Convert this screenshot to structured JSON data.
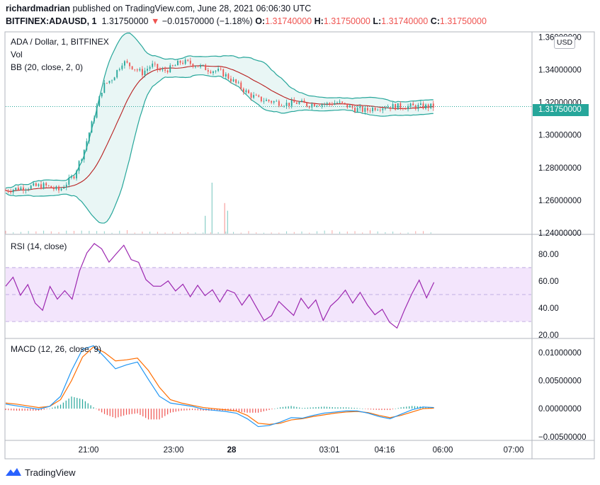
{
  "header": {
    "author": "richardmadrian",
    "published_text": " published on TradingView.com, June 28, 2021 06:06:30 UTC",
    "symbol": "BITFINEX:ADAUSD, 1",
    "last_price": "1.31750000",
    "change_arrow": "▼",
    "change": "−0.01570000 (−1.18%)",
    "o_label": "O:",
    "o_value": "1.31740000",
    "h_label": "H:",
    "h_value": "1.31750000",
    "l_label": "L:",
    "l_value": "1.31740000",
    "c_label": "C:",
    "c_value": "1.31750000"
  },
  "colors": {
    "up": "#26a69a",
    "down": "#ef5350",
    "bb_band": "#26a69a",
    "bb_basis": "#b71c1c",
    "bb_fill": "#e0f2f1",
    "rsi": "#9c27b0",
    "rsi_band_fill": "#f3e5fc",
    "macd": "#2196f3",
    "signal": "#ff6d00"
  },
  "footer": {
    "brand": "TradingView",
    "logo_icon": "tradingview-logo-icon"
  },
  "chart_data": [
    {
      "type": "candlestick",
      "pane": "price",
      "title": "ADA / Dollar, 1, BITFINEX",
      "indicators": [
        "Vol",
        "BB (20, close, 2, 0)"
      ],
      "currency_button": "USD",
      "last_price_label": "1.31750000",
      "y_ticks": [
        "1.36000000",
        "1.34000000",
        "1.32000000",
        "1.30000000",
        "1.28000000",
        "1.26000000",
        "1.24000000"
      ],
      "ylim": [
        1.2395,
        1.362
      ],
      "x_ticks": [
        "21:00",
        "23:00",
        "28",
        "03:01",
        "04:16",
        "06:00",
        "07:00"
      ],
      "time_range_min": [
        0,
        540
      ],
      "close": {
        "t": [
          0,
          20,
          40,
          55,
          70,
          80,
          90,
          100,
          110,
          120,
          130,
          140,
          150,
          160,
          170,
          180,
          190,
          200,
          210,
          220,
          230,
          240,
          250,
          260,
          270,
          280,
          290,
          300,
          310,
          320,
          330,
          340,
          350,
          360,
          370,
          380,
          390,
          400,
          410,
          420,
          430,
          440,
          450,
          460,
          470,
          480,
          490,
          500
        ],
        "v": [
          1.266,
          1.268,
          1.269,
          1.266,
          1.275,
          1.29,
          1.31,
          1.33,
          1.335,
          1.345,
          1.342,
          1.338,
          1.343,
          1.339,
          1.341,
          1.345,
          1.344,
          1.342,
          1.34,
          1.339,
          1.335,
          1.33,
          1.325,
          1.322,
          1.321,
          1.32,
          1.319,
          1.32,
          1.3185,
          1.3195,
          1.319,
          1.32,
          1.318,
          1.316,
          1.315,
          1.317,
          1.3175,
          1.3175,
          1.3175,
          1.3175,
          1.3175,
          1.3175,
          1.3175,
          1.3175,
          1.3175,
          1.3175,
          1.3175,
          1.3175
        ]
      },
      "volume_spikes": [
        {
          "t": 212,
          "v": 1.0,
          "dir": "up"
        },
        {
          "t": 225,
          "v": 0.6,
          "dir": "down"
        },
        {
          "t": 205,
          "v": 0.35,
          "dir": "up"
        },
        {
          "t": 228,
          "v": 0.45,
          "dir": "up"
        }
      ]
    },
    {
      "type": "line",
      "pane": "rsi",
      "title": "RSI (14, close)",
      "y_ticks": [
        "80.00",
        "60.00",
        "40.00",
        "20.00"
      ],
      "ylim": [
        18,
        92
      ],
      "band": [
        30,
        70
      ],
      "mid": 50,
      "values": [
        55,
        62,
        48,
        58,
        43,
        38,
        55,
        45,
        52,
        47,
        66,
        80,
        87,
        82,
        76,
        82,
        86,
        74,
        72,
        62,
        58,
        55,
        61,
        52,
        56,
        50,
        58,
        48,
        55,
        46,
        52,
        50,
        41,
        50,
        40,
        30,
        36,
        44,
        41,
        36,
        46,
        39,
        48,
        32,
        41,
        48,
        54,
        44,
        50,
        42,
        35,
        38,
        30,
        26,
        40,
        52,
        62,
        48,
        60
      ]
    },
    {
      "type": "line",
      "pane": "macd",
      "title": "MACD (12, 26, close, 9)",
      "y_ticks": [
        "0.01000000",
        "0.00500000",
        "0.00000000",
        "−0.00500000"
      ],
      "ylim": [
        -0.0054,
        0.012
      ],
      "series": [
        {
          "name": "MACD",
          "values": [
            0.0008,
            0.0005,
            0.0002,
            -0.0001,
            0.0004,
            0.0022,
            0.0068,
            0.0106,
            0.0112,
            0.0092,
            0.0071,
            0.0078,
            0.0083,
            0.0052,
            0.0022,
            0.001,
            0.0007,
            0.0004,
            -0.0001,
            -0.0003,
            -0.0005,
            -0.0008,
            -0.0018,
            -0.0032,
            -0.003,
            -0.0024,
            -0.0016,
            -0.0017,
            -0.0012,
            -0.0008,
            -0.0006,
            -0.0004,
            -0.0004,
            -0.0008,
            -0.0014,
            -0.0018,
            -0.001,
            -0.0002,
            0.0003,
            0.0002
          ]
        },
        {
          "name": "Signal",
          "values": [
            0.001,
            0.0008,
            0.0005,
            0.0002,
            0.0004,
            0.0016,
            0.005,
            0.0092,
            0.011,
            0.01,
            0.0085,
            0.0087,
            0.009,
            0.0068,
            0.0038,
            0.0016,
            0.001,
            0.0006,
            0.0002,
            0.0,
            -0.0002,
            -0.0004,
            -0.0012,
            -0.0026,
            -0.0028,
            -0.0026,
            -0.002,
            -0.0018,
            -0.0014,
            -0.0011,
            -0.0008,
            -0.0006,
            -0.0005,
            -0.0007,
            -0.0012,
            -0.0016,
            -0.0012,
            -0.0006,
            0.0,
            0.0001
          ]
        }
      ]
    }
  ]
}
